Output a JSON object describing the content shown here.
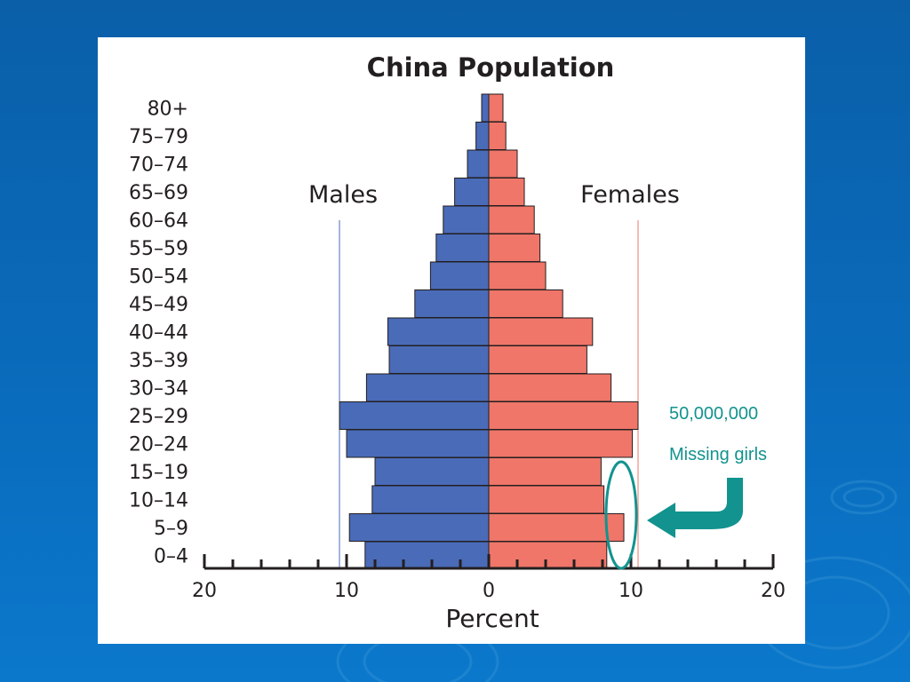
{
  "chart_data": {
    "type": "bar",
    "orientation": "horizontal",
    "title": "China Population",
    "xlabel": "Percent",
    "xlim": [
      -20,
      20
    ],
    "x_ticks": [
      20,
      10,
      0,
      10,
      20
    ],
    "categories": [
      "80+",
      "75–79",
      "70–74",
      "65–69",
      "60–64",
      "55–59",
      "50–54",
      "45–49",
      "40–44",
      "35–39",
      "30–34",
      "25–29",
      "20–24",
      "15–19",
      "10–14",
      "5–9",
      "0–4"
    ],
    "series": [
      {
        "name": "Males",
        "color": "#4a6bb8",
        "values": [
          0.5,
          0.9,
          1.5,
          2.4,
          3.2,
          3.7,
          4.1,
          5.2,
          7.1,
          7.0,
          8.6,
          10.5,
          10.0,
          8.0,
          8.2,
          9.8,
          8.7
        ]
      },
      {
        "name": "Females",
        "color": "#ef7669",
        "values": [
          1.0,
          1.2,
          2.0,
          2.5,
          3.2,
          3.6,
          4.0,
          5.2,
          7.3,
          6.9,
          8.6,
          10.5,
          10.1,
          7.9,
          8.1,
          9.5,
          8.3
        ]
      }
    ],
    "reference_lines": [
      {
        "series": "Males",
        "value": 10.5,
        "color": "#4a6bb8"
      },
      {
        "series": "Females",
        "value": 10.5,
        "color": "#ef7669"
      }
    ],
    "grid": false,
    "legend": "series names above bars"
  },
  "annotation": {
    "line1": "50,000,000",
    "line2": "Missing girls",
    "color": "#12938f"
  }
}
